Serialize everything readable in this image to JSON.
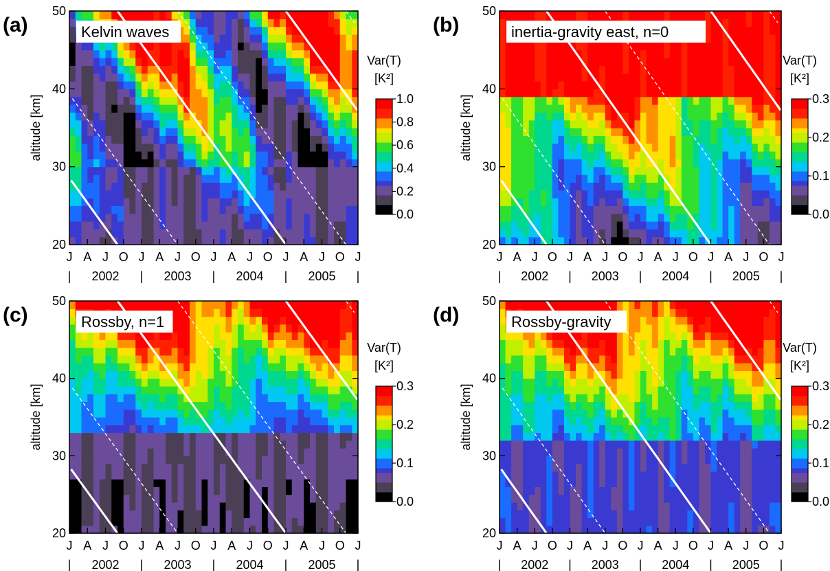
{
  "chart_data": [
    {
      "type": "heatmap",
      "panel_label": "(a)",
      "title": "Kelvin waves",
      "ylabel": "altitude [km]",
      "ylim": [
        20,
        50
      ],
      "yticks": [
        20,
        30,
        40,
        50
      ],
      "month_labels": [
        "J",
        "A",
        "J",
        "O",
        "J",
        "A",
        "J",
        "O",
        "J",
        "A",
        "J",
        "O",
        "J",
        "A",
        "J",
        "O",
        "J"
      ],
      "year_labels": [
        "2002",
        "2003",
        "2004",
        "2005"
      ],
      "colorbar": {
        "title": "Var(T)",
        "unit": "[K²]",
        "range": [
          0.0,
          1.0
        ],
        "ticks": [
          "0.0",
          "0.2",
          "0.4",
          "0.6",
          "0.8",
          "1.0"
        ]
      },
      "scale_max": 1.0,
      "pattern": "kelvin"
    },
    {
      "type": "heatmap",
      "panel_label": "(b)",
      "title": "inertia-gravity east, n=0",
      "ylabel": "altitude [km]",
      "ylim": [
        20,
        50
      ],
      "yticks": [
        20,
        30,
        40,
        50
      ],
      "month_labels": [
        "J",
        "A",
        "J",
        "O",
        "J",
        "A",
        "J",
        "O",
        "J",
        "A",
        "J",
        "O",
        "J",
        "A",
        "J",
        "O",
        "J"
      ],
      "year_labels": [
        "2002",
        "2003",
        "2004",
        "2005"
      ],
      "colorbar": {
        "title": "Var(T)",
        "unit": "[K²]",
        "range": [
          0.0,
          0.3
        ],
        "ticks": [
          "0.0",
          "0.1",
          "0.2",
          "0.3"
        ]
      },
      "scale_max": 0.3,
      "pattern": "igw"
    },
    {
      "type": "heatmap",
      "panel_label": "(c)",
      "title": "Rossby, n=1",
      "ylabel": "altitude [km]",
      "ylim": [
        20,
        50
      ],
      "yticks": [
        20,
        30,
        40,
        50
      ],
      "month_labels": [
        "J",
        "A",
        "J",
        "O",
        "J",
        "A",
        "J",
        "O",
        "J",
        "A",
        "J",
        "O",
        "J",
        "A",
        "J",
        "O",
        "J"
      ],
      "year_labels": [
        "2002",
        "2003",
        "2004",
        "2005"
      ],
      "colorbar": {
        "title": "Var(T)",
        "unit": "[K²]",
        "range": [
          0.0,
          0.3
        ],
        "ticks": [
          "0.0",
          "0.1",
          "0.2",
          "0.3"
        ]
      },
      "scale_max": 0.3,
      "pattern": "rossby"
    },
    {
      "type": "heatmap",
      "panel_label": "(d)",
      "title": "Rossby-gravity",
      "ylabel": "altitude [km]",
      "ylim": [
        20,
        50
      ],
      "yticks": [
        20,
        30,
        40,
        50
      ],
      "month_labels": [
        "J",
        "A",
        "J",
        "O",
        "J",
        "A",
        "J",
        "O",
        "J",
        "A",
        "J",
        "O",
        "J",
        "A",
        "J",
        "O",
        "J"
      ],
      "year_labels": [
        "2002",
        "2003",
        "2004",
        "2005"
      ],
      "colorbar": {
        "title": "Var(T)",
        "unit": "[K²]",
        "range": [
          0.0,
          0.3
        ],
        "ticks": [
          "0.0",
          "0.1",
          "0.2",
          "0.3"
        ]
      },
      "scale_max": 0.3,
      "pattern": "rgw"
    }
  ],
  "colors": {
    "colormap": [
      "#000000",
      "#4a3f55",
      "#6b4c9a",
      "#3a3ad0",
      "#1a6cff",
      "#00c8f0",
      "#00d890",
      "#30e030",
      "#c0f000",
      "#ffe000",
      "#ff9000",
      "#ff2000",
      "#ff0000"
    ],
    "contour": "#ffffff",
    "frame": "#000000"
  }
}
